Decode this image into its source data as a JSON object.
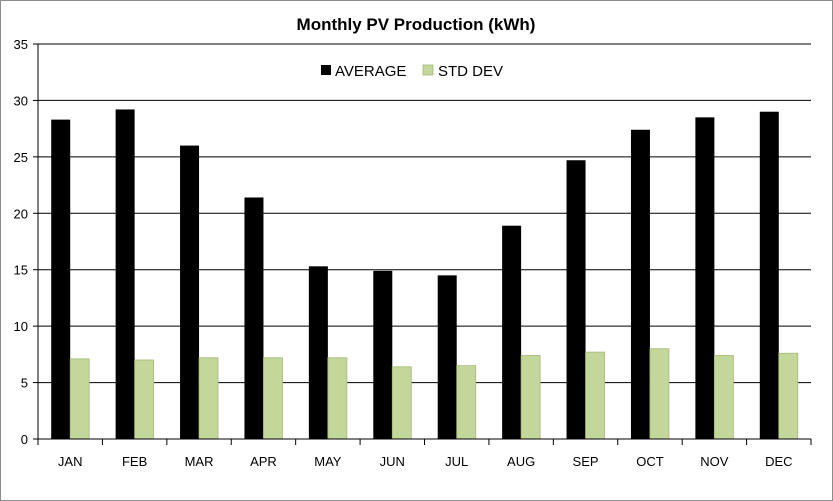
{
  "chart_data": {
    "type": "bar",
    "title": "Monthly PV Production  (kWh)",
    "xlabel": "",
    "ylabel": "",
    "ylim": [
      0,
      35
    ],
    "yticks": [
      0,
      5,
      10,
      15,
      20,
      25,
      30,
      35
    ],
    "grid": true,
    "legend_position": "top-center",
    "categories": [
      "JAN",
      "FEB",
      "MAR",
      "APR",
      "MAY",
      "JUN",
      "JUL",
      "AUG",
      "SEP",
      "OCT",
      "NOV",
      "DEC"
    ],
    "series": [
      {
        "name": "AVERAGE",
        "color": "#000000",
        "values": [
          28.3,
          29.2,
          26.0,
          21.4,
          15.3,
          14.9,
          14.5,
          18.9,
          24.7,
          27.4,
          28.5,
          29.0
        ]
      },
      {
        "name": "STD DEV",
        "color": "#c4d79b",
        "values": [
          7.1,
          7.0,
          7.2,
          7.2,
          7.2,
          6.4,
          6.5,
          7.4,
          7.7,
          8.0,
          7.4,
          7.6
        ]
      }
    ]
  }
}
